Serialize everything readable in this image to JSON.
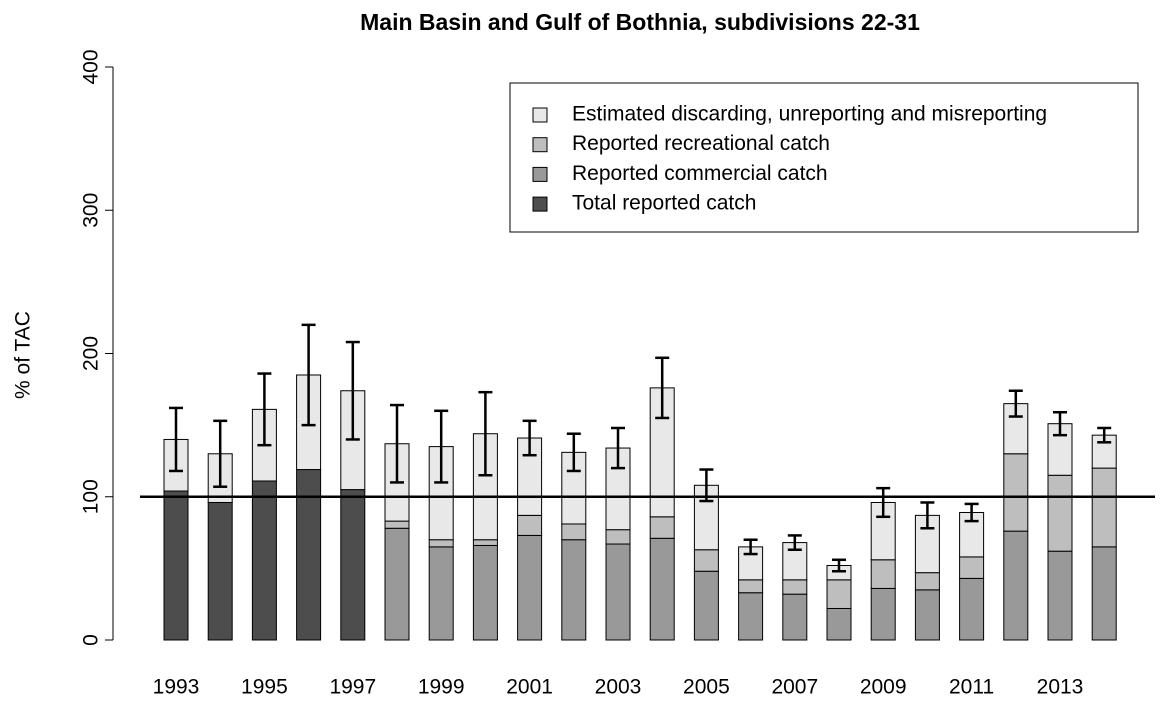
{
  "chart_data": {
    "type": "stacked-bar",
    "title": "Main Basin and Gulf of Bothnia, subdivisions 22-31",
    "ylabel": "% of TAC",
    "categories": [
      "1993",
      null,
      "1995",
      null,
      "1997",
      null,
      "1999",
      null,
      "2001",
      null,
      "2003",
      null,
      "2005",
      null,
      "2007",
      null,
      "2009",
      null,
      "2011",
      null,
      "2013",
      null
    ],
    "series": [
      {
        "name": "Estimated discarding, unreporting and misreporting",
        "color": "#e8e8e8",
        "values": [
          36,
          34,
          50,
          66,
          69,
          54,
          65,
          74,
          54,
          50,
          57,
          90,
          45,
          23,
          26,
          10,
          40,
          40,
          31,
          35,
          36,
          23
        ],
        "errors": [
          22,
          23,
          25,
          35,
          34,
          27,
          25,
          29,
          12,
          13,
          14,
          21,
          11,
          5,
          5,
          4,
          10,
          9,
          6,
          9,
          8,
          5
        ]
      },
      {
        "name": "Reported recreational catch",
        "color": "#bebebe",
        "values": [
          null,
          null,
          null,
          null,
          null,
          5,
          5,
          4,
          14,
          11,
          10,
          15,
          15,
          9,
          10,
          20,
          20,
          12,
          15,
          54,
          53,
          55
        ]
      },
      {
        "name": "Reported commercial catch",
        "color": "#999999",
        "values": [
          null,
          null,
          null,
          null,
          null,
          78,
          65,
          66,
          73,
          70,
          67,
          71,
          48,
          33,
          32,
          22,
          36,
          35,
          43,
          76,
          62,
          65
        ]
      },
      {
        "name": "Total reported catch",
        "color": "#4d4d4d",
        "values": [
          104,
          96,
          111,
          119,
          105,
          null,
          null,
          null,
          null,
          null,
          null,
          null,
          null,
          null,
          null,
          null,
          null,
          null,
          null,
          null,
          null,
          null
        ]
      }
    ],
    "hline": 100,
    "ylim": [
      0,
      400
    ],
    "yticks": [
      0,
      100,
      200,
      300,
      400
    ],
    "legend": "top-right",
    "grid": false
  }
}
